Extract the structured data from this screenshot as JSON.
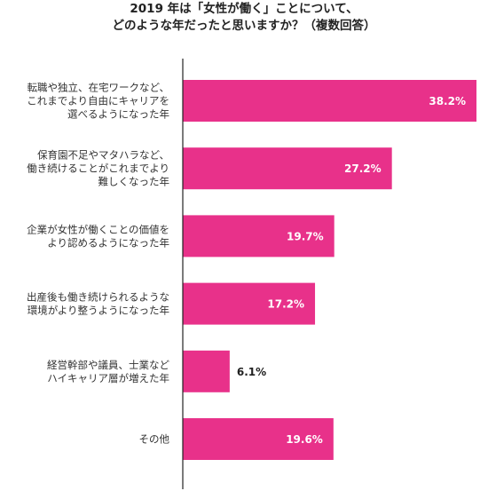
{
  "chart_data": {
    "type": "bar",
    "orientation": "horizontal",
    "title_lines": [
      "2019 年は「女性が働く」ことについて、",
      "どのような年だったと思いますか？（複数回答）"
    ],
    "categories": [
      [
        "転職や独立、在宅ワークなど、",
        "これまでより自由にキャリアを",
        "選べるようになった年"
      ],
      [
        "保育園不足やマタハラなど、",
        "働き続けることがこれまでより",
        "難しくなった年"
      ],
      [
        "企業が女性が働くことの価値を",
        "より認めるようになった年"
      ],
      [
        "出産後も働き続けられるような",
        "環境がより整うようになった年"
      ],
      [
        "経営幹部や議員、士業など",
        "ハイキャリア層が増えた年"
      ],
      [
        "その他"
      ]
    ],
    "values": [
      38.2,
      27.2,
      19.7,
      17.2,
      6.1,
      19.6
    ],
    "value_labels": [
      "38.2%",
      "27.2%",
      "19.7%",
      "17.2%",
      "6.1%",
      "19.6%"
    ],
    "xlim": [
      0,
      38.2
    ],
    "grid": false,
    "bar_color": "#e8318a",
    "label_inside_color": "#ffffff",
    "label_outside_color": "#222222"
  }
}
